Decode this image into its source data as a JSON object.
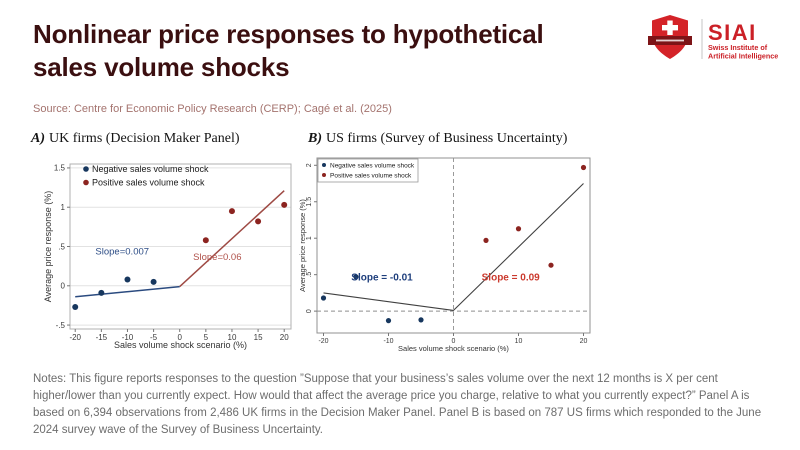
{
  "header": {
    "title_line1": "Nonlinear price responses to hypothetical",
    "title_line2": "sales volume shocks",
    "title_color": "#3b0f10",
    "source": "Source: Centre for Economic Policy Research (CERP); Cagé et al. (2025)",
    "source_color": "#a4736e"
  },
  "logo": {
    "acronym": "SIAI",
    "tagline_line1": "Swiss Institute of",
    "tagline_line2": "Artificial Intelligence",
    "brand_color": "#cb2027",
    "shield_color": "#d42328",
    "banner_color": "#7d1417"
  },
  "notes": {
    "text": "Notes: This figure reports responses to the question ”Suppose that your business’s sales volume over the next 12 months is X per cent higher/lower than you currently expect. How would that affect the average price you charge, relative to what you currently expect?” Panel A is based on 6,394 observations from 2,486 UK firms in the Decision Maker Panel. Panel B is based on 787 US firms which responded to the June 2024 survey wave of the Survey of Business Uncertainty."
  },
  "chart_data": [
    {
      "type": "scatter",
      "title_prefix": "A)",
      "title": "UK firms (Decision Maker Panel)",
      "xlabel": "Sales volume shock scenario (%)",
      "ylabel": "Average price response (%)",
      "xlim": [
        -21,
        21.3
      ],
      "ylim": [
        -0.55,
        1.55
      ],
      "xticks": [
        -20,
        -15,
        -10,
        -5,
        0,
        5,
        10,
        15,
        20
      ],
      "yticks": [
        -0.5,
        0,
        0.5,
        1,
        1.5
      ],
      "ytick_labels": [
        "-.5",
        "0",
        ".5",
        "1",
        "1.5"
      ],
      "grid": "horizontal",
      "legend": {
        "position": "top-left",
        "border": false,
        "items": [
          {
            "label": "Negative sales volume shock",
            "color": "#17375e"
          },
          {
            "label": "Positive sales volume shock",
            "color": "#8c2420"
          }
        ]
      },
      "series": [
        {
          "name": "Negative sales volume shock",
          "color": "#17375e",
          "points": [
            [
              -20,
              -0.27
            ],
            [
              -15,
              -0.09
            ],
            [
              -10,
              0.08
            ],
            [
              -5,
              0.05
            ]
          ]
        },
        {
          "name": "Positive sales volume shock",
          "color": "#8c2420",
          "points": [
            [
              5,
              0.58
            ],
            [
              10,
              0.95
            ],
            [
              15,
              0.82
            ],
            [
              20,
              1.03
            ]
          ]
        }
      ],
      "lines": [
        {
          "from": [
            -20,
            -0.14
          ],
          "to": [
            0,
            -0.01
          ],
          "color": "#2a4a7f",
          "width": 1.5
        },
        {
          "from": [
            0,
            -0.01
          ],
          "to": [
            20,
            1.21
          ],
          "color": "#9e4a44",
          "width": 1.5
        }
      ],
      "reflines": [],
      "annotations": [
        {
          "text": "Slope=0.007",
          "x": -11,
          "y": 0.4,
          "color": "#2d4d86",
          "bold": false
        },
        {
          "text": "Slope=0.06",
          "x": 7.2,
          "y": 0.33,
          "color": "#b0524b",
          "bold": false
        }
      ]
    },
    {
      "type": "scatter",
      "title_prefix": "B)",
      "title": "US firms (Survey of Business Uncertainty)",
      "xlabel": "Sales volume shock scenario (%)",
      "ylabel": "Average price response (%)",
      "xlim": [
        -21,
        21
      ],
      "ylim": [
        -0.3,
        2.1
      ],
      "xticks": [
        -20,
        -10,
        0,
        10,
        20
      ],
      "yticks": [
        0,
        0.5,
        1,
        1.5,
        2
      ],
      "ytick_labels": [
        "0",
        ".5",
        "1",
        "1.5",
        "2"
      ],
      "grid": "none",
      "legend": {
        "position": "top-left",
        "border": true,
        "items": [
          {
            "label": "Negative sales volume shock",
            "color": "#17375e"
          },
          {
            "label": "Positive sales volume shock",
            "color": "#8c2420"
          }
        ]
      },
      "series": [
        {
          "name": "Negative sales volume shock",
          "color": "#17375e",
          "points": [
            [
              -20,
              0.18
            ],
            [
              -15,
              0.47
            ],
            [
              -10,
              -0.13
            ],
            [
              -5,
              -0.12
            ]
          ]
        },
        {
          "name": "Positive sales volume shock",
          "color": "#8c2420",
          "points": [
            [
              5,
              0.97
            ],
            [
              10,
              1.13
            ],
            [
              15,
              0.63
            ],
            [
              20,
              1.97
            ]
          ]
        }
      ],
      "lines": [
        {
          "from": [
            -20,
            0.25
          ],
          "to": [
            0,
            0.01
          ],
          "color": "#404040",
          "width": 1.1
        },
        {
          "from": [
            0,
            0.01
          ],
          "to": [
            20,
            1.75
          ],
          "color": "#404040",
          "width": 1.1
        }
      ],
      "reflines": [
        {
          "axis": "x",
          "at": 0
        },
        {
          "axis": "y",
          "at": 0
        }
      ],
      "annotations": [
        {
          "text": "Slope = -0.01",
          "x": -11,
          "y": 0.42,
          "color": "#1e3e7c",
          "bold": true
        },
        {
          "text": "Slope = 0.09",
          "x": 8.8,
          "y": 0.42,
          "color": "#cb3a2e",
          "bold": true
        }
      ]
    }
  ]
}
